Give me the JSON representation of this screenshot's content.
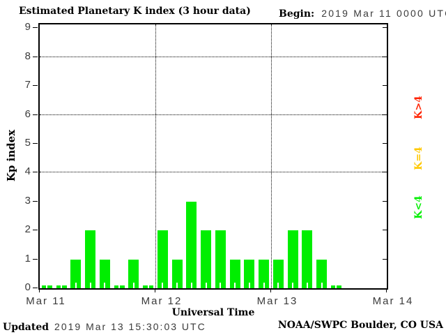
{
  "title": "Estimated Planetary K index (3 hour data)",
  "begin": {
    "label": "Begin:",
    "value": "2019 Mar 11 0000 UTC"
  },
  "footer": {
    "updated_label": "Updated",
    "updated_value": "2019 Mar 13 15:30:03 UTC",
    "credit": "NOAA/SWPC Boulder, CO USA"
  },
  "chart_data": {
    "type": "bar",
    "title": "Estimated Planetary K index (3 hour data)",
    "xlabel": "Universal Time",
    "ylabel": "Kp index",
    "ylim": [
      0,
      9
    ],
    "y_ticks": [
      0,
      1,
      2,
      3,
      4,
      5,
      6,
      7,
      8,
      9
    ],
    "gridlines_y": [
      4,
      6,
      8
    ],
    "grid": "dotted",
    "x_tick_labels": [
      "Mar 11",
      "Mar 12",
      "Mar 13",
      "Mar 14"
    ],
    "slots_per_day": 8,
    "num_slots": 24,
    "day_line_slots": [
      8,
      16
    ],
    "interval_hours": 3,
    "values": [
      0,
      0,
      1,
      2,
      1,
      0,
      1,
      0,
      2,
      1,
      3,
      2,
      2,
      1,
      1,
      1,
      1,
      2,
      2,
      1,
      0,
      null,
      null,
      null
    ],
    "bar_color": "#00EE00",
    "legend_position": "right",
    "legend": [
      {
        "label": "K>4",
        "color": "#FF2200"
      },
      {
        "label": "K=4",
        "color": "#FFC800"
      },
      {
        "label": "K<4",
        "color": "#00EE00"
      }
    ]
  }
}
